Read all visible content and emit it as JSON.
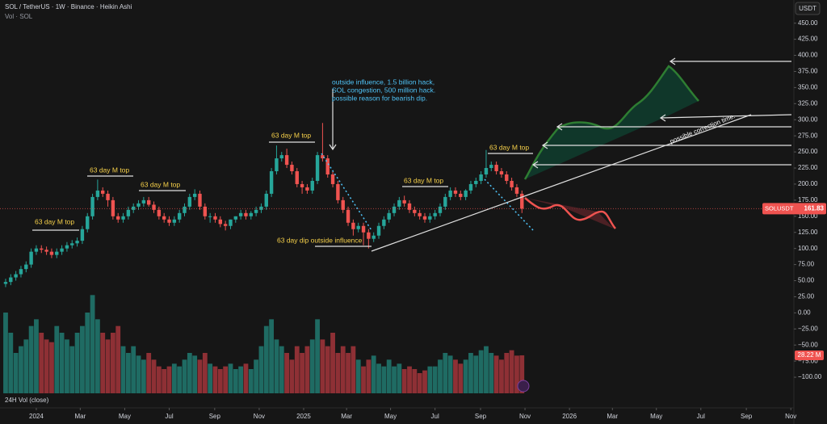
{
  "header": {
    "symbol": "SOL / TetherUS · 1W · Binance · Heikin Ashi",
    "volume_label": "Vol · SOL",
    "currency": "USDT",
    "volume_pane_label": "24H Vol (close)"
  },
  "chart_data": {
    "type": "candlestick",
    "x": [
      -6,
      -5,
      -4,
      -3,
      -2,
      -1,
      0,
      1,
      2,
      3,
      4,
      5,
      6,
      7,
      8,
      9,
      10,
      11,
      12,
      13,
      14,
      15,
      16,
      17,
      18,
      19,
      20,
      21,
      22,
      23,
      24,
      25,
      26,
      27,
      28,
      29,
      30,
      31,
      32,
      33,
      34,
      35,
      36,
      37,
      38,
      39,
      40,
      41,
      42,
      43,
      44,
      45,
      46,
      47,
      48,
      49,
      50,
      51,
      52,
      53,
      54,
      55,
      56,
      57,
      58,
      59,
      60,
      61,
      62,
      63,
      64,
      65,
      66,
      67,
      68,
      69,
      70,
      71,
      72,
      73,
      74,
      75,
      76,
      77,
      78,
      79,
      80,
      81,
      82,
      83,
      84,
      85,
      86,
      87,
      88,
      89,
      90,
      91,
      92,
      93,
      94,
      95
    ],
    "open": [
      45,
      48,
      55,
      60,
      68,
      75,
      95,
      100,
      98,
      95,
      90,
      95,
      100,
      105,
      108,
      112,
      130,
      150,
      180,
      190,
      185,
      175,
      150,
      145,
      150,
      160,
      165,
      170,
      175,
      168,
      160,
      150,
      145,
      140,
      145,
      155,
      165,
      180,
      185,
      165,
      150,
      150,
      145,
      138,
      135,
      145,
      150,
      155,
      150,
      155,
      160,
      165,
      185,
      220,
      240,
      245,
      230,
      220,
      200,
      195,
      190,
      205,
      245,
      240,
      215,
      200,
      175,
      160,
      140,
      130,
      135,
      125,
      115,
      120,
      135,
      145,
      155,
      165,
      175,
      170,
      160,
      155,
      150,
      145,
      150,
      155,
      165,
      180,
      190,
      185,
      180,
      190,
      200,
      205,
      215,
      225,
      230,
      220,
      215,
      205,
      195,
      185
    ],
    "high": [
      53,
      60,
      65,
      73,
      80,
      100,
      105,
      105,
      103,
      100,
      100,
      105,
      110,
      113,
      117,
      135,
      155,
      185,
      207,
      195,
      190,
      180,
      155,
      155,
      165,
      170,
      175,
      180,
      180,
      173,
      165,
      155,
      150,
      150,
      160,
      170,
      185,
      192,
      190,
      170,
      155,
      155,
      150,
      143,
      145,
      150,
      160,
      160,
      158,
      165,
      170,
      190,
      225,
      260,
      250,
      255,
      235,
      225,
      205,
      200,
      210,
      250,
      295,
      245,
      220,
      205,
      180,
      165,
      145,
      140,
      140,
      130,
      125,
      140,
      150,
      160,
      170,
      180,
      182,
      175,
      165,
      160,
      155,
      155,
      160,
      170,
      185,
      195,
      195,
      190,
      192,
      205,
      210,
      220,
      253,
      235,
      235,
      225,
      220,
      210,
      200,
      190
    ],
    "low": [
      40,
      43,
      50,
      55,
      63,
      70,
      90,
      93,
      90,
      85,
      85,
      90,
      95,
      100,
      103,
      107,
      125,
      145,
      175,
      180,
      165,
      145,
      140,
      140,
      145,
      155,
      160,
      165,
      165,
      155,
      145,
      140,
      135,
      135,
      140,
      150,
      160,
      175,
      160,
      145,
      140,
      140,
      133,
      128,
      130,
      140,
      145,
      145,
      145,
      150,
      155,
      160,
      180,
      215,
      235,
      225,
      215,
      195,
      185,
      185,
      185,
      200,
      235,
      210,
      195,
      170,
      155,
      135,
      120,
      125,
      105,
      100,
      110,
      115,
      130,
      140,
      150,
      160,
      165,
      155,
      150,
      145,
      140,
      140,
      145,
      150,
      160,
      175,
      180,
      175,
      175,
      185,
      195,
      200,
      210,
      220,
      215,
      210,
      200,
      190,
      180,
      155
    ],
    "close": [
      48,
      55,
      60,
      68,
      75,
      95,
      100,
      98,
      95,
      90,
      95,
      100,
      105,
      108,
      112,
      130,
      150,
      180,
      190,
      185,
      175,
      150,
      145,
      150,
      160,
      165,
      170,
      175,
      168,
      160,
      150,
      145,
      140,
      145,
      155,
      165,
      180,
      185,
      165,
      150,
      150,
      145,
      138,
      135,
      145,
      150,
      155,
      150,
      155,
      160,
      165,
      185,
      220,
      240,
      245,
      230,
      220,
      200,
      195,
      190,
      205,
      245,
      240,
      215,
      200,
      175,
      160,
      140,
      130,
      135,
      125,
      115,
      120,
      135,
      145,
      155,
      165,
      175,
      170,
      160,
      155,
      150,
      145,
      150,
      155,
      165,
      180,
      190,
      185,
      180,
      190,
      200,
      205,
      215,
      225,
      230,
      220,
      215,
      205,
      195,
      185,
      161.83
    ],
    "up_color": "#26a69a",
    "down_color": "#ef5350",
    "symbol_tag": "SOLUSDT",
    "volume": {
      "values": [
        60,
        45,
        30,
        35,
        40,
        50,
        55,
        45,
        40,
        38,
        50,
        45,
        40,
        35,
        45,
        50,
        60,
        73,
        55,
        45,
        40,
        45,
        50,
        35,
        30,
        35,
        28,
        25,
        30,
        25,
        20,
        18,
        20,
        22,
        20,
        25,
        30,
        28,
        25,
        30,
        22,
        20,
        18,
        20,
        22,
        18,
        20,
        22,
        18,
        25,
        35,
        50,
        55,
        40,
        35,
        30,
        25,
        35,
        30,
        35,
        40,
        55,
        40,
        35,
        45,
        30,
        35,
        30,
        35,
        25,
        20,
        25,
        28,
        22,
        20,
        25,
        20,
        22,
        18,
        20,
        18,
        15,
        17,
        20,
        20,
        25,
        30,
        28,
        25,
        22,
        25,
        30,
        28,
        32,
        35,
        30,
        28,
        25,
        30,
        32,
        28,
        28.22
      ],
      "ylim": [
        0,
        75
      ],
      "last_label": "28.22 M",
      "up_color": "#1f6b63",
      "down_color": "#8e3035"
    },
    "xlim": [
      -7.1,
      148.2
    ],
    "xticks": [
      {
        "value": 0,
        "label": "2024"
      },
      {
        "value": 8.6,
        "label": "Mar"
      },
      {
        "value": 17.3,
        "label": "May"
      },
      {
        "value": 26,
        "label": "Jul"
      },
      {
        "value": 34.9,
        "label": "Sep"
      },
      {
        "value": 43.6,
        "label": "Nov"
      },
      {
        "value": 52.3,
        "label": "2025"
      },
      {
        "value": 60.7,
        "label": "Mar"
      },
      {
        "value": 69.3,
        "label": "May"
      },
      {
        "value": 78,
        "label": "Jul"
      },
      {
        "value": 86.9,
        "label": "Sep"
      },
      {
        "value": 95.6,
        "label": "Nov"
      },
      {
        "value": 104.3,
        "label": "2026"
      },
      {
        "value": 112.7,
        "label": "Mar"
      },
      {
        "value": 121.3,
        "label": "May"
      },
      {
        "value": 130,
        "label": "Jul"
      },
      {
        "value": 138.9,
        "label": "Sep"
      },
      {
        "value": 147.6,
        "label": "Nov"
      }
    ],
    "ylim": [
      -125,
      486
    ],
    "yticks": [
      {
        "value": 450,
        "label": "450.00"
      },
      {
        "value": 425,
        "label": "425.00"
      },
      {
        "value": 400,
        "label": "400.00"
      },
      {
        "value": 375,
        "label": "375.00"
      },
      {
        "value": 350,
        "label": "350.00"
      },
      {
        "value": 325,
        "label": "325.00"
      },
      {
        "value": 300,
        "label": "300.00"
      },
      {
        "value": 275,
        "label": "275.00"
      },
      {
        "value": 250,
        "label": "250.00"
      },
      {
        "value": 225,
        "label": "225.00"
      },
      {
        "value": 200,
        "label": "200.00"
      },
      {
        "value": 175,
        "label": "175.00"
      },
      {
        "value": 150,
        "label": "150.00"
      },
      {
        "value": 125,
        "label": "125.00"
      },
      {
        "value": 100,
        "label": "100.00"
      },
      {
        "value": 75,
        "label": "75.00"
      },
      {
        "value": 50,
        "label": "50.00"
      },
      {
        "value": 25,
        "label": "25.00"
      },
      {
        "value": 0,
        "label": "0.00"
      },
      {
        "value": -25,
        "label": "−25.00"
      },
      {
        "value": -50,
        "label": "−50.00"
      },
      {
        "value": -75,
        "label": "−75.00"
      },
      {
        "value": -100,
        "label": "−100.00"
      }
    ],
    "grid": false,
    "annotations": [
      "63 day M top",
      "63 day M top",
      "63 day M top",
      "63 day M top",
      "63 day M top",
      "63 day M top",
      "63 day dip outside influence",
      "possible correction time."
    ],
    "note_lines": [
      "outside influence, 1.5 billion hack,",
      "SOL congestion, 500 million hack.",
      "possible reason for bearish dip."
    ]
  }
}
